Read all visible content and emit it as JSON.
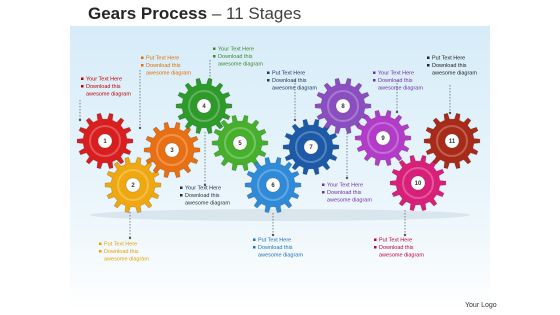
{
  "title": "Gears Process",
  "subtitle": "– 11 Stages",
  "logo": "Your Logo",
  "stages": [
    {
      "number": 1,
      "heading": "Your Text Here",
      "lines": [
        "Download this",
        "awesome diagram"
      ],
      "color": "#d81e1e",
      "text_color": "#c00000"
    },
    {
      "number": 2,
      "heading": "Put Text Here",
      "lines": [
        "Download this",
        "awesome diagram"
      ],
      "color": "#f0a810",
      "text_color": "#e8a000"
    },
    {
      "number": 3,
      "heading": "Put Text Here",
      "lines": [
        "Download this",
        "awesome diagram"
      ],
      "color": "#e86f12",
      "text_color": "#e07000"
    },
    {
      "number": 4,
      "heading": "Your Text Here",
      "lines": [
        "Download this",
        "awesome diagram"
      ],
      "color": "#2e9a2a",
      "text_color": "#3a8a2a"
    },
    {
      "number": 5,
      "heading": "Your Text Here",
      "lines": [
        "Download this",
        "awesome diagram"
      ],
      "color": "#46b02c",
      "text_color": "#1f2a44"
    },
    {
      "number": 6,
      "heading": "Put Text Here",
      "lines": [
        "Download this",
        "awesome diagram"
      ],
      "color": "#2f8ad8",
      "text_color": "#1f6fbf"
    },
    {
      "number": 7,
      "heading": "Put Text Here",
      "lines": [
        "Download this",
        "awesome diagram"
      ],
      "color": "#1c5aa8",
      "text_color": "#1f3864"
    },
    {
      "number": 8,
      "heading": "Your Text Here",
      "lines": [
        "Download this",
        "awesome diagram"
      ],
      "color": "#8a4ec0",
      "text_color": "#7030a0"
    },
    {
      "number": 9,
      "heading": "Your Text Here",
      "lines": [
        "Download this",
        "awesome diagram"
      ],
      "color": "#b23cc8",
      "text_color": "#7030a0"
    },
    {
      "number": 10,
      "heading": "Put Text Here",
      "lines": [
        "Download this",
        "awesome diagram"
      ],
      "color": "#d8207a",
      "text_color": "#c0003c"
    },
    {
      "number": 11,
      "heading": "Put Text Here",
      "lines": [
        "Download this",
        "awesome diagram"
      ],
      "color": "#a82a18",
      "text_color": "#222222"
    }
  ]
}
